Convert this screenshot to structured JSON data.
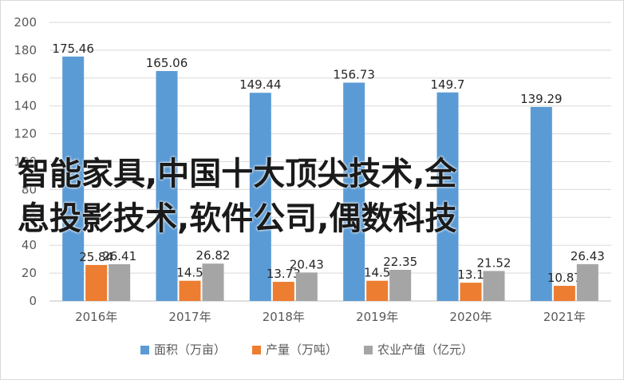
{
  "chart_data": {
    "type": "bar",
    "categories": [
      "2016年",
      "2017年",
      "2018年",
      "2019年",
      "2020年",
      "2021年"
    ],
    "series": [
      {
        "name": "面积（万亩）",
        "color": "#5b9bd5",
        "values": [
          175.46,
          165.06,
          149.44,
          156.73,
          149.7,
          139.29
        ]
      },
      {
        "name": "产量（万吨）",
        "color": "#ed7d31",
        "values": [
          25.84,
          14.5,
          13.73,
          14.5,
          13.1,
          10.87
        ]
      },
      {
        "name": "农业产值（亿元）",
        "color": "#a5a5a5",
        "values": [
          26.41,
          26.82,
          20.43,
          22.35,
          21.52,
          26.43
        ]
      }
    ],
    "data_labels": [
      [
        "175.46",
        "165.06",
        "149.44",
        "156.73",
        "149.7",
        "139.29"
      ],
      [
        "25.84",
        "14.5",
        "13.73",
        "14.5",
        "13.1",
        "10.87"
      ],
      [
        "26.41",
        "26.82",
        "20.43",
        "22.35",
        "21.52",
        "26.43"
      ]
    ],
    "yticks": [
      "0",
      "20",
      "40",
      "60",
      "80",
      "100",
      "120",
      "140",
      "160",
      "180",
      "200"
    ],
    "ylim": [
      0,
      200
    ],
    "grid": true,
    "legend_position": "bottom"
  },
  "overlay_text": {
    "line1": "智能家具,中国十大顶尖技术,全",
    "line2": "息投影技术,软件公司,偶数科技"
  }
}
